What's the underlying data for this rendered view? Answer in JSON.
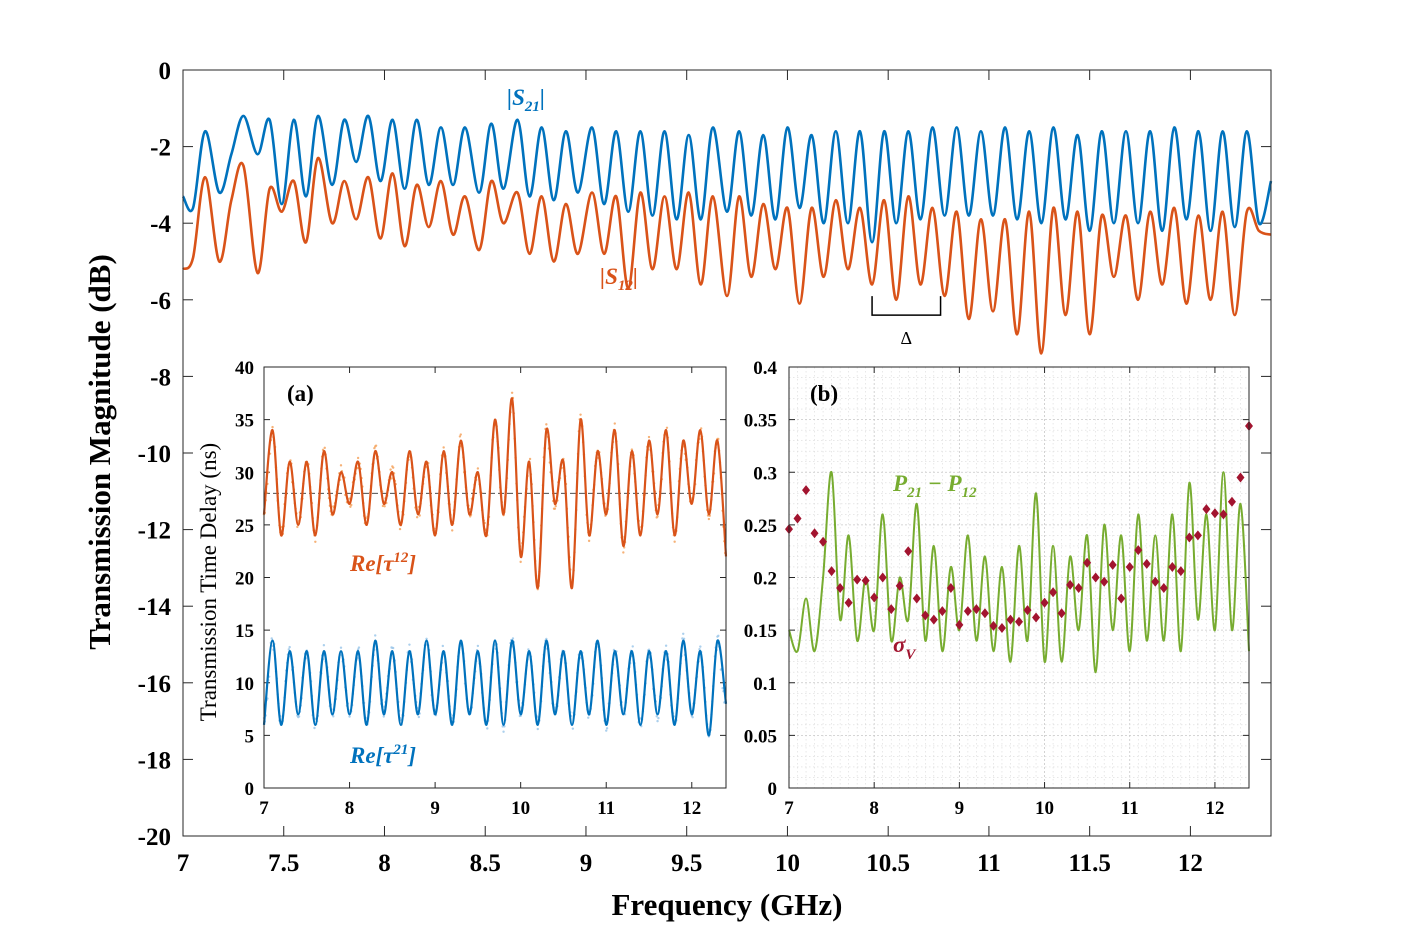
{
  "chart_data": [
    {
      "id": "main",
      "type": "line",
      "xlabel": "Frequency (GHz)",
      "ylabel": "Transmission Magnitude (dB)",
      "xlim": [
        7,
        12.4
      ],
      "ylim": [
        -20,
        0
      ],
      "xticks": [
        "7",
        "7.5",
        "8",
        "8.5",
        "9",
        "9.5",
        "10",
        "10.5",
        "11",
        "11.5",
        "12"
      ],
      "xtick_values": [
        7,
        7.5,
        8,
        8.5,
        9,
        9.5,
        10,
        10.5,
        11,
        11.5,
        12
      ],
      "yticks": [
        "0",
        "-2",
        "-4",
        "-6",
        "-8",
        "-10",
        "-12",
        "-14",
        "-16",
        "-18",
        "-20"
      ],
      "ytick_values": [
        0,
        -2,
        -4,
        -6,
        -8,
        -10,
        -12,
        -14,
        -16,
        -18,
        -20
      ],
      "series": [
        {
          "name": "|S21|",
          "label_main": "|S",
          "label_sub": "21",
          "label_end": "|",
          "color": "#0072bd",
          "x": [
            7.0,
            7.05,
            7.11,
            7.18,
            7.24,
            7.3,
            7.37,
            7.43,
            7.49,
            7.55,
            7.61,
            7.67,
            7.74,
            7.8,
            7.86,
            7.92,
            7.98,
            8.04,
            8.1,
            8.16,
            8.22,
            8.28,
            8.34,
            8.4,
            8.47,
            8.53,
            8.59,
            8.66,
            8.72,
            8.78,
            8.84,
            8.9,
            8.96,
            9.03,
            9.09,
            9.15,
            9.21,
            9.27,
            9.33,
            9.39,
            9.45,
            9.51,
            9.57,
            9.63,
            9.7,
            9.76,
            9.82,
            9.88,
            9.94,
            10.0,
            10.06,
            10.12,
            10.18,
            10.24,
            10.3,
            10.36,
            10.42,
            10.48,
            10.54,
            10.6,
            10.66,
            10.72,
            10.78,
            10.84,
            10.9,
            10.96,
            11.02,
            11.08,
            11.14,
            11.2,
            11.26,
            11.32,
            11.38,
            11.44,
            11.5,
            11.56,
            11.62,
            11.68,
            11.74,
            11.8,
            11.86,
            11.92,
            11.98,
            12.04,
            12.1,
            12.16,
            12.22,
            12.28,
            12.34,
            12.4
          ],
          "y": [
            -3.3,
            -3.6,
            -1.6,
            -3.2,
            -2.2,
            -1.2,
            -2.2,
            -1.3,
            -3.5,
            -1.3,
            -3.3,
            -1.2,
            -3.0,
            -1.3,
            -2.4,
            -1.2,
            -2.9,
            -1.3,
            -3.1,
            -1.3,
            -3.0,
            -1.5,
            -3.0,
            -1.5,
            -3.2,
            -1.4,
            -3.1,
            -1.3,
            -3.3,
            -1.5,
            -3.4,
            -1.6,
            -3.2,
            -1.5,
            -3.5,
            -1.6,
            -3.7,
            -1.6,
            -3.8,
            -1.6,
            -3.9,
            -1.7,
            -3.9,
            -1.5,
            -3.7,
            -1.6,
            -3.8,
            -1.7,
            -3.9,
            -1.5,
            -3.6,
            -1.7,
            -4.0,
            -1.6,
            -4.0,
            -1.6,
            -4.5,
            -1.6,
            -4.0,
            -1.6,
            -3.9,
            -1.5,
            -3.8,
            -1.5,
            -3.8,
            -1.6,
            -3.8,
            -1.5,
            -3.9,
            -1.6,
            -4.0,
            -1.5,
            -3.9,
            -1.7,
            -4.2,
            -1.6,
            -4.0,
            -1.6,
            -4.0,
            -1.6,
            -4.2,
            -1.5,
            -3.9,
            -1.6,
            -4.2,
            -1.6,
            -4.1,
            -1.6,
            -4.0,
            -2.9
          ]
        },
        {
          "name": "|S12|",
          "label_main": "|S",
          "label_sub": "12",
          "label_end": "|",
          "color": "#d95319",
          "x": [
            7.0,
            7.05,
            7.11,
            7.18,
            7.24,
            7.3,
            7.37,
            7.43,
            7.49,
            7.55,
            7.61,
            7.67,
            7.74,
            7.8,
            7.86,
            7.92,
            7.98,
            8.04,
            8.1,
            8.16,
            8.22,
            8.28,
            8.34,
            8.4,
            8.47,
            8.53,
            8.59,
            8.66,
            8.72,
            8.78,
            8.84,
            8.9,
            8.96,
            9.03,
            9.09,
            9.15,
            9.21,
            9.27,
            9.33,
            9.39,
            9.45,
            9.51,
            9.57,
            9.63,
            9.7,
            9.76,
            9.82,
            9.88,
            9.94,
            10.0,
            10.06,
            10.12,
            10.18,
            10.24,
            10.3,
            10.36,
            10.42,
            10.48,
            10.54,
            10.6,
            10.66,
            10.72,
            10.78,
            10.84,
            10.9,
            10.96,
            11.02,
            11.08,
            11.14,
            11.2,
            11.26,
            11.32,
            11.38,
            11.44,
            11.5,
            11.56,
            11.62,
            11.68,
            11.74,
            11.8,
            11.86,
            11.92,
            11.98,
            12.04,
            12.1,
            12.16,
            12.22,
            12.28,
            12.34,
            12.4
          ],
          "y": [
            -5.2,
            -4.9,
            -2.8,
            -5.0,
            -3.4,
            -2.5,
            -5.3,
            -3.1,
            -3.7,
            -2.9,
            -4.5,
            -2.3,
            -4.0,
            -2.9,
            -3.9,
            -2.8,
            -4.4,
            -2.7,
            -4.6,
            -3.0,
            -4.1,
            -2.9,
            -4.3,
            -3.3,
            -4.7,
            -2.9,
            -4.0,
            -3.2,
            -4.8,
            -3.3,
            -5.0,
            -3.5,
            -4.8,
            -3.2,
            -4.8,
            -3.3,
            -5.7,
            -3.2,
            -5.2,
            -3.3,
            -5.2,
            -3.2,
            -5.6,
            -3.3,
            -5.9,
            -3.3,
            -5.4,
            -3.5,
            -5.2,
            -3.6,
            -6.1,
            -3.6,
            -5.4,
            -3.4,
            -5.2,
            -3.6,
            -5.6,
            -3.4,
            -6.0,
            -3.3,
            -5.6,
            -3.6,
            -5.9,
            -3.7,
            -6.5,
            -3.9,
            -6.3,
            -3.9,
            -6.9,
            -3.7,
            -7.4,
            -3.6,
            -6.4,
            -3.7,
            -6.9,
            -3.8,
            -5.4,
            -3.8,
            -6.0,
            -3.7,
            -5.6,
            -3.6,
            -6.1,
            -3.8,
            -6.0,
            -3.7,
            -6.4,
            -3.7,
            -4.2,
            -4.3
          ]
        }
      ],
      "annotation": {
        "label": "Δ",
        "x_start": 10.42,
        "x_end": 10.76,
        "y": -6.4
      }
    },
    {
      "id": "inset_a",
      "type": "line",
      "panel_label": "(a)",
      "ylabel": "Transmission Time Delay (ns)",
      "xlim": [
        7,
        12.4
      ],
      "ylim": [
        0,
        40
      ],
      "xticks": [
        "7",
        "8",
        "9",
        "10",
        "11",
        "12"
      ],
      "xtick_values": [
        7,
        8,
        9,
        10,
        11,
        12
      ],
      "yticks": [
        "0",
        "5",
        "10",
        "15",
        "20",
        "25",
        "30",
        "35",
        "40"
      ],
      "ytick_values": [
        0,
        5,
        10,
        15,
        20,
        25,
        30,
        35,
        40
      ],
      "reference_line": 28,
      "series": [
        {
          "name": "Re[τ12]",
          "label_main": "Re[τ",
          "label_sup": "12",
          "label_end": "]",
          "color": "#d95319",
          "scatter_color": "#f4a460",
          "x": [
            7.0,
            7.1,
            7.2,
            7.3,
            7.4,
            7.5,
            7.6,
            7.7,
            7.8,
            7.9,
            8.0,
            8.1,
            8.2,
            8.3,
            8.4,
            8.5,
            8.6,
            8.7,
            8.8,
            8.9,
            9.0,
            9.1,
            9.2,
            9.3,
            9.4,
            9.5,
            9.6,
            9.7,
            9.8,
            9.9,
            10.0,
            10.1,
            10.2,
            10.3,
            10.4,
            10.5,
            10.6,
            10.7,
            10.8,
            10.9,
            11.0,
            11.1,
            11.2,
            11.3,
            11.4,
            11.5,
            11.6,
            11.7,
            11.8,
            11.9,
            12.0,
            12.1,
            12.2,
            12.3,
            12.4
          ],
          "y": [
            26,
            34,
            24,
            31,
            25,
            31,
            24,
            32,
            26,
            30,
            27,
            31,
            25,
            32,
            27,
            30,
            25,
            32,
            26,
            31,
            24,
            32,
            25,
            33,
            26,
            30,
            24,
            35,
            26,
            37,
            22,
            31,
            19,
            34,
            27,
            31,
            19,
            35,
            24,
            32,
            26,
            34,
            23,
            32,
            24,
            33,
            26,
            34,
            24,
            33,
            27,
            34,
            26,
            33,
            22
          ]
        },
        {
          "name": "Re[τ21]",
          "label_main": "Re[τ",
          "label_sup": "21",
          "label_end": "]",
          "color": "#0072bd",
          "scatter_color": "#9ec8ea",
          "x": [
            7.0,
            7.1,
            7.2,
            7.3,
            7.4,
            7.5,
            7.6,
            7.7,
            7.8,
            7.9,
            8.0,
            8.1,
            8.2,
            8.3,
            8.4,
            8.5,
            8.6,
            8.7,
            8.8,
            8.9,
            9.0,
            9.1,
            9.2,
            9.3,
            9.4,
            9.5,
            9.6,
            9.7,
            9.8,
            9.9,
            10.0,
            10.1,
            10.2,
            10.3,
            10.4,
            10.5,
            10.6,
            10.7,
            10.8,
            10.9,
            11.0,
            11.1,
            11.2,
            11.3,
            11.4,
            11.5,
            11.6,
            11.7,
            11.8,
            11.9,
            12.0,
            12.1,
            12.2,
            12.3,
            12.4
          ],
          "y": [
            6,
            14,
            6,
            13,
            7,
            13,
            6,
            13,
            7,
            13,
            7,
            13,
            6,
            14,
            7,
            13,
            6,
            13,
            7,
            14,
            7,
            13,
            6,
            14,
            7,
            13,
            6,
            14,
            6,
            14,
            7,
            13,
            6,
            14,
            7,
            13,
            6,
            13,
            7,
            14,
            6,
            13,
            7,
            13,
            6,
            13,
            7,
            13,
            6,
            14,
            7,
            13,
            5,
            14,
            8
          ]
        }
      ]
    },
    {
      "id": "inset_b",
      "type": "line+scatter",
      "panel_label": "(b)",
      "xlim": [
        7,
        12.4
      ],
      "ylim": [
        0,
        0.4
      ],
      "grid": true,
      "xticks": [
        "7",
        "8",
        "9",
        "10",
        "11",
        "12"
      ],
      "xtick_values": [
        7,
        8,
        9,
        10,
        11,
        12
      ],
      "yticks": [
        "0",
        "0.05",
        "0.1",
        "0.15",
        "0.2",
        "0.25",
        "0.3",
        "0.35",
        "0.4"
      ],
      "ytick_values": [
        0,
        0.05,
        0.1,
        0.15,
        0.2,
        0.25,
        0.3,
        0.35,
        0.4
      ],
      "series": [
        {
          "name": "P21 − P12",
          "label_main": "P",
          "label_sub": "21",
          "label_mid": " − P",
          "label_sub2": "12",
          "color": "#77ac30",
          "x": [
            7.0,
            7.1,
            7.2,
            7.3,
            7.4,
            7.5,
            7.6,
            7.7,
            7.8,
            7.9,
            8.0,
            8.1,
            8.2,
            8.3,
            8.4,
            8.5,
            8.6,
            8.7,
            8.8,
            8.9,
            9.0,
            9.1,
            9.2,
            9.3,
            9.4,
            9.5,
            9.6,
            9.7,
            9.8,
            9.9,
            10.0,
            10.1,
            10.2,
            10.3,
            10.4,
            10.5,
            10.6,
            10.7,
            10.8,
            10.9,
            11.0,
            11.1,
            11.2,
            11.3,
            11.4,
            11.5,
            11.6,
            11.7,
            11.8,
            11.9,
            12.0,
            12.1,
            12.2,
            12.3,
            12.4
          ],
          "y": [
            0.15,
            0.13,
            0.18,
            0.13,
            0.2,
            0.3,
            0.16,
            0.24,
            0.14,
            0.2,
            0.15,
            0.26,
            0.14,
            0.2,
            0.16,
            0.27,
            0.14,
            0.23,
            0.13,
            0.21,
            0.15,
            0.24,
            0.14,
            0.22,
            0.13,
            0.21,
            0.12,
            0.23,
            0.14,
            0.28,
            0.12,
            0.23,
            0.12,
            0.22,
            0.15,
            0.24,
            0.11,
            0.25,
            0.15,
            0.24,
            0.13,
            0.26,
            0.14,
            0.24,
            0.14,
            0.26,
            0.13,
            0.29,
            0.16,
            0.26,
            0.15,
            0.3,
            0.15,
            0.27,
            0.13
          ]
        },
        {
          "name": "σV",
          "label_main": "σ",
          "label_sub": "V",
          "color": "#a2142f",
          "marker": "diamond",
          "x": [
            7.0,
            7.1,
            7.2,
            7.3,
            7.4,
            7.5,
            7.6,
            7.7,
            7.8,
            7.9,
            8.0,
            8.1,
            8.2,
            8.3,
            8.4,
            8.5,
            8.6,
            8.7,
            8.8,
            8.9,
            9.0,
            9.1,
            9.2,
            9.3,
            9.4,
            9.5,
            9.6,
            9.7,
            9.8,
            9.9,
            10.0,
            10.1,
            10.2,
            10.3,
            10.4,
            10.5,
            10.6,
            10.7,
            10.8,
            10.9,
            11.0,
            11.1,
            11.2,
            11.3,
            11.4,
            11.5,
            11.6,
            11.7,
            11.8,
            11.9,
            12.0,
            12.1,
            12.2,
            12.3,
            12.4
          ],
          "y": [
            0.246,
            0.256,
            0.283,
            0.242,
            0.234,
            0.206,
            0.19,
            0.176,
            0.198,
            0.197,
            0.181,
            0.2,
            0.17,
            0.192,
            0.225,
            0.18,
            0.164,
            0.16,
            0.168,
            0.19,
            0.155,
            0.168,
            0.17,
            0.166,
            0.154,
            0.152,
            0.16,
            0.158,
            0.169,
            0.162,
            0.176,
            0.186,
            0.166,
            0.193,
            0.19,
            0.214,
            0.2,
            0.196,
            0.212,
            0.18,
            0.21,
            0.226,
            0.213,
            0.196,
            0.19,
            0.21,
            0.206,
            0.238,
            0.24,
            0.265,
            0.261,
            0.26,
            0.272,
            0.295,
            0.344
          ]
        }
      ]
    }
  ]
}
